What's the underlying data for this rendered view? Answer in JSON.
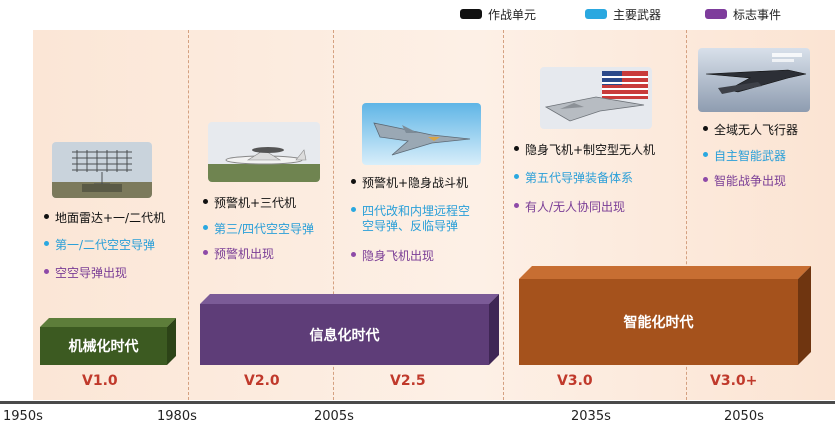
{
  "legend": [
    {
      "label": "作战单元",
      "color": "#111111"
    },
    {
      "label": "主要武器",
      "color": "#2aa8e0"
    },
    {
      "label": "标志事件",
      "color": "#7e3c9c"
    }
  ],
  "columns": [
    {
      "bullets": [
        {
          "type": "unit",
          "text": "地面雷达+一/二代机"
        },
        {
          "type": "weapon",
          "text": "第一/二代空空导弹"
        },
        {
          "type": "event",
          "text": "空空导弹出现"
        }
      ]
    },
    {
      "bullets": [
        {
          "type": "unit",
          "text": "预警机+三代机"
        },
        {
          "type": "weapon",
          "text": "第三/四代空空导弹"
        },
        {
          "type": "event",
          "text": "预警机出现"
        }
      ]
    },
    {
      "bullets": [
        {
          "type": "unit",
          "text": "预警机+隐身战斗机"
        },
        {
          "type": "weapon",
          "text": "四代改和内埋远程空"
        },
        {
          "type": "weapon",
          "text": "空导弹、反临导弹"
        },
        {
          "type": "event",
          "text": "隐身飞机出现"
        }
      ]
    },
    {
      "bullets": [
        {
          "type": "unit",
          "text": "隐身飞机+制空型无人机"
        },
        {
          "type": "weapon",
          "text": "第五代导弹装备体系"
        },
        {
          "type": "event",
          "text": "有人/无人协同出现"
        }
      ]
    },
    {
      "bullets": [
        {
          "type": "unit",
          "text": "全域无人飞行器"
        },
        {
          "type": "weapon",
          "text": "自主智能武器"
        },
        {
          "type": "event",
          "text": "智能战争出现"
        }
      ]
    }
  ],
  "eras": [
    {
      "label": "机械化时代",
      "color": "#3c5a21"
    },
    {
      "label": "信息化时代",
      "color": "#5e3d78"
    },
    {
      "label": "智能化时代",
      "color": "#a5521c"
    }
  ],
  "versions": [
    "V1.0",
    "V2.0",
    "V2.5",
    "V3.0",
    "V3.0+"
  ],
  "timeline": [
    "1950s",
    "1980s",
    "2005s",
    "2035s",
    "2050s"
  ]
}
